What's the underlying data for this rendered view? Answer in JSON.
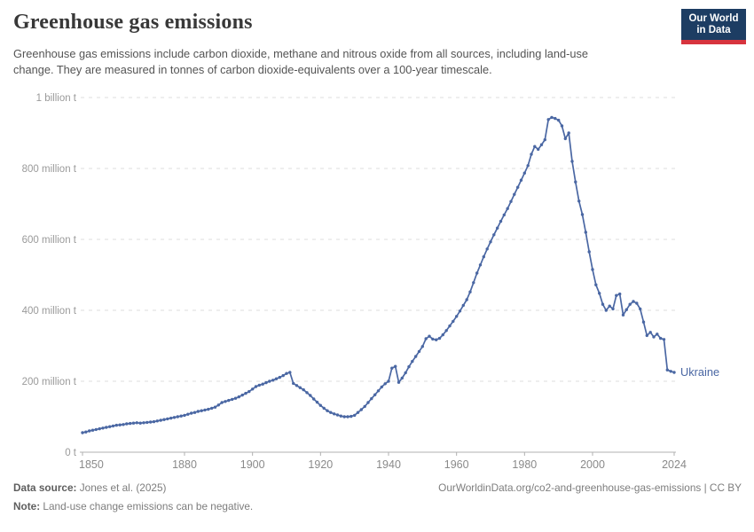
{
  "header": {
    "title": "Greenhouse gas emissions",
    "subtitle": "Greenhouse gas emissions include carbon dioxide, methane and nitrous oxide from all sources, including land-use change. They are measured in tonnes of carbon dioxide-equivalents over a 100-year timescale."
  },
  "logo": {
    "line1": "Our World",
    "line2": "in Data",
    "bg_color": "#1d3d63",
    "accent_color": "#d7343e"
  },
  "chart_data": {
    "type": "line",
    "title": "Greenhouse gas emissions",
    "entity": "Ukraine",
    "x_range": [
      1850,
      2024
    ],
    "x_step": 1,
    "x_ticks": [
      1850,
      1880,
      1900,
      1920,
      1940,
      1960,
      1980,
      2000,
      2024
    ],
    "y_unit": "million t",
    "ylim_million_t": [
      0,
      1000
    ],
    "y_ticks": [
      {
        "value": 0,
        "label": "0 t"
      },
      {
        "value": 200,
        "label": "200 million t"
      },
      {
        "value": 400,
        "label": "400 million t"
      },
      {
        "value": 600,
        "label": "600 million t"
      },
      {
        "value": 800,
        "label": "800 million t"
      },
      {
        "value": 1000,
        "label": "1 billion t"
      }
    ],
    "grid": "dashed-horizontal",
    "legend_position": "end-of-line-label",
    "series": [
      {
        "name": "Ukraine",
        "color": "#4a67a3",
        "values_million_t": [
          55,
          57,
          60,
          62,
          64,
          66,
          68,
          70,
          72,
          74,
          76,
          77,
          78,
          80,
          81,
          82,
          83,
          82,
          83,
          84,
          85,
          86,
          88,
          90,
          92,
          94,
          96,
          98,
          100,
          102,
          104,
          107,
          110,
          112,
          115,
          117,
          119,
          121,
          124,
          127,
          133,
          140,
          143,
          146,
          149,
          152,
          156,
          161,
          166,
          171,
          178,
          185,
          189,
          192,
          196,
          200,
          203,
          207,
          211,
          216,
          222,
          225,
          194,
          188,
          182,
          176,
          168,
          160,
          150,
          141,
          132,
          124,
          117,
          112,
          108,
          105,
          102,
          100,
          100,
          101,
          104,
          112,
          120,
          129,
          140,
          151,
          162,
          173,
          184,
          193,
          200,
          237,
          242,
          197,
          209,
          224,
          241,
          256,
          270,
          284,
          298,
          320,
          327,
          319,
          317,
          321,
          331,
          343,
          356,
          369,
          383,
          398,
          414,
          430,
          452,
          478,
          505,
          528,
          551,
          573,
          593,
          613,
          632,
          651,
          669,
          687,
          707,
          727,
          747,
          767,
          787,
          808,
          840,
          862,
          854,
          867,
          881,
          938,
          944,
          941,
          936,
          920,
          884,
          900,
          820,
          762,
          708,
          670,
          620,
          565,
          515,
          472,
          448,
          417,
          400,
          412,
          404,
          442,
          446,
          387,
          402,
          417,
          425,
          420,
          404,
          367,
          329,
          338,
          325,
          333,
          321,
          318,
          232,
          228,
          225
        ]
      }
    ],
    "colors": {
      "grid": "#dcdcdc",
      "axis": "#b0b0b0",
      "y_tick_label": "#9a9a9a",
      "x_tick_label": "#8a8a8a"
    }
  },
  "footer": {
    "data_source_label": "Data source:",
    "data_source_value": " Jones et al. (2025)",
    "citation": "OurWorldinData.org/co2-and-greenhouse-gas-emissions | CC BY",
    "note_label": "Note:",
    "note_value": " Land-use change emissions can be negative."
  }
}
